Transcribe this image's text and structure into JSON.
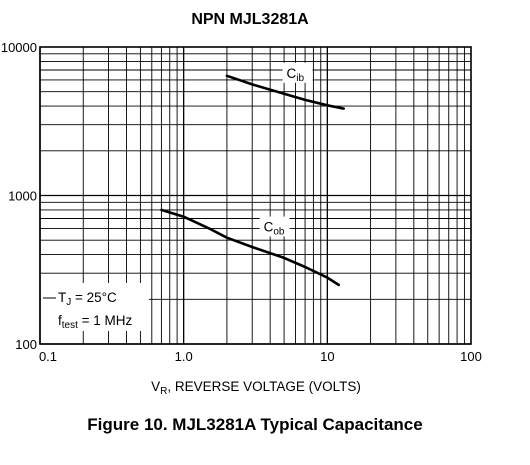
{
  "chart_data": {
    "type": "line",
    "title": "NPN MJL3281A",
    "caption": "Figure 10. MJL3281A Typical Capacitance",
    "x_scale": "log",
    "y_scale": "log",
    "xlim": [
      0.1,
      100
    ],
    "ylim": [
      100,
      10000
    ],
    "grid": true,
    "x_ticks": [
      {
        "value": 0.1,
        "label": "0.1"
      },
      {
        "value": 1,
        "label": "1.0"
      },
      {
        "value": 10,
        "label": "10"
      },
      {
        "value": 100,
        "label": "100"
      }
    ],
    "y_ticks": [
      {
        "value": 100,
        "label": "100"
      },
      {
        "value": 1000,
        "label": "1000"
      },
      {
        "value": 10000,
        "label": "10000"
      }
    ],
    "xlabel": {
      "main": "V",
      "sub": "R",
      "rest": ", REVERSE VOLTAGE (VOLTS)"
    },
    "series": [
      {
        "label_main": "C",
        "label_sub": "ib",
        "x": [
          2,
          3,
          5,
          7,
          10,
          13
        ],
        "y": [
          6400,
          5600,
          4850,
          4400,
          4050,
          3850
        ]
      },
      {
        "label_main": "C",
        "label_sub": "ob",
        "x": [
          0.7,
          1,
          1.5,
          2,
          3,
          5,
          7,
          10,
          12
        ],
        "y": [
          800,
          720,
          600,
          520,
          450,
          380,
          330,
          280,
          250
        ]
      }
    ],
    "annotation": {
      "line1_main": "T",
      "line1_sub": "J",
      "line1_rest": " = 25°C",
      "line2_main": "f",
      "line2_sub": "test",
      "line2_rest": " = 1 MHz"
    }
  }
}
